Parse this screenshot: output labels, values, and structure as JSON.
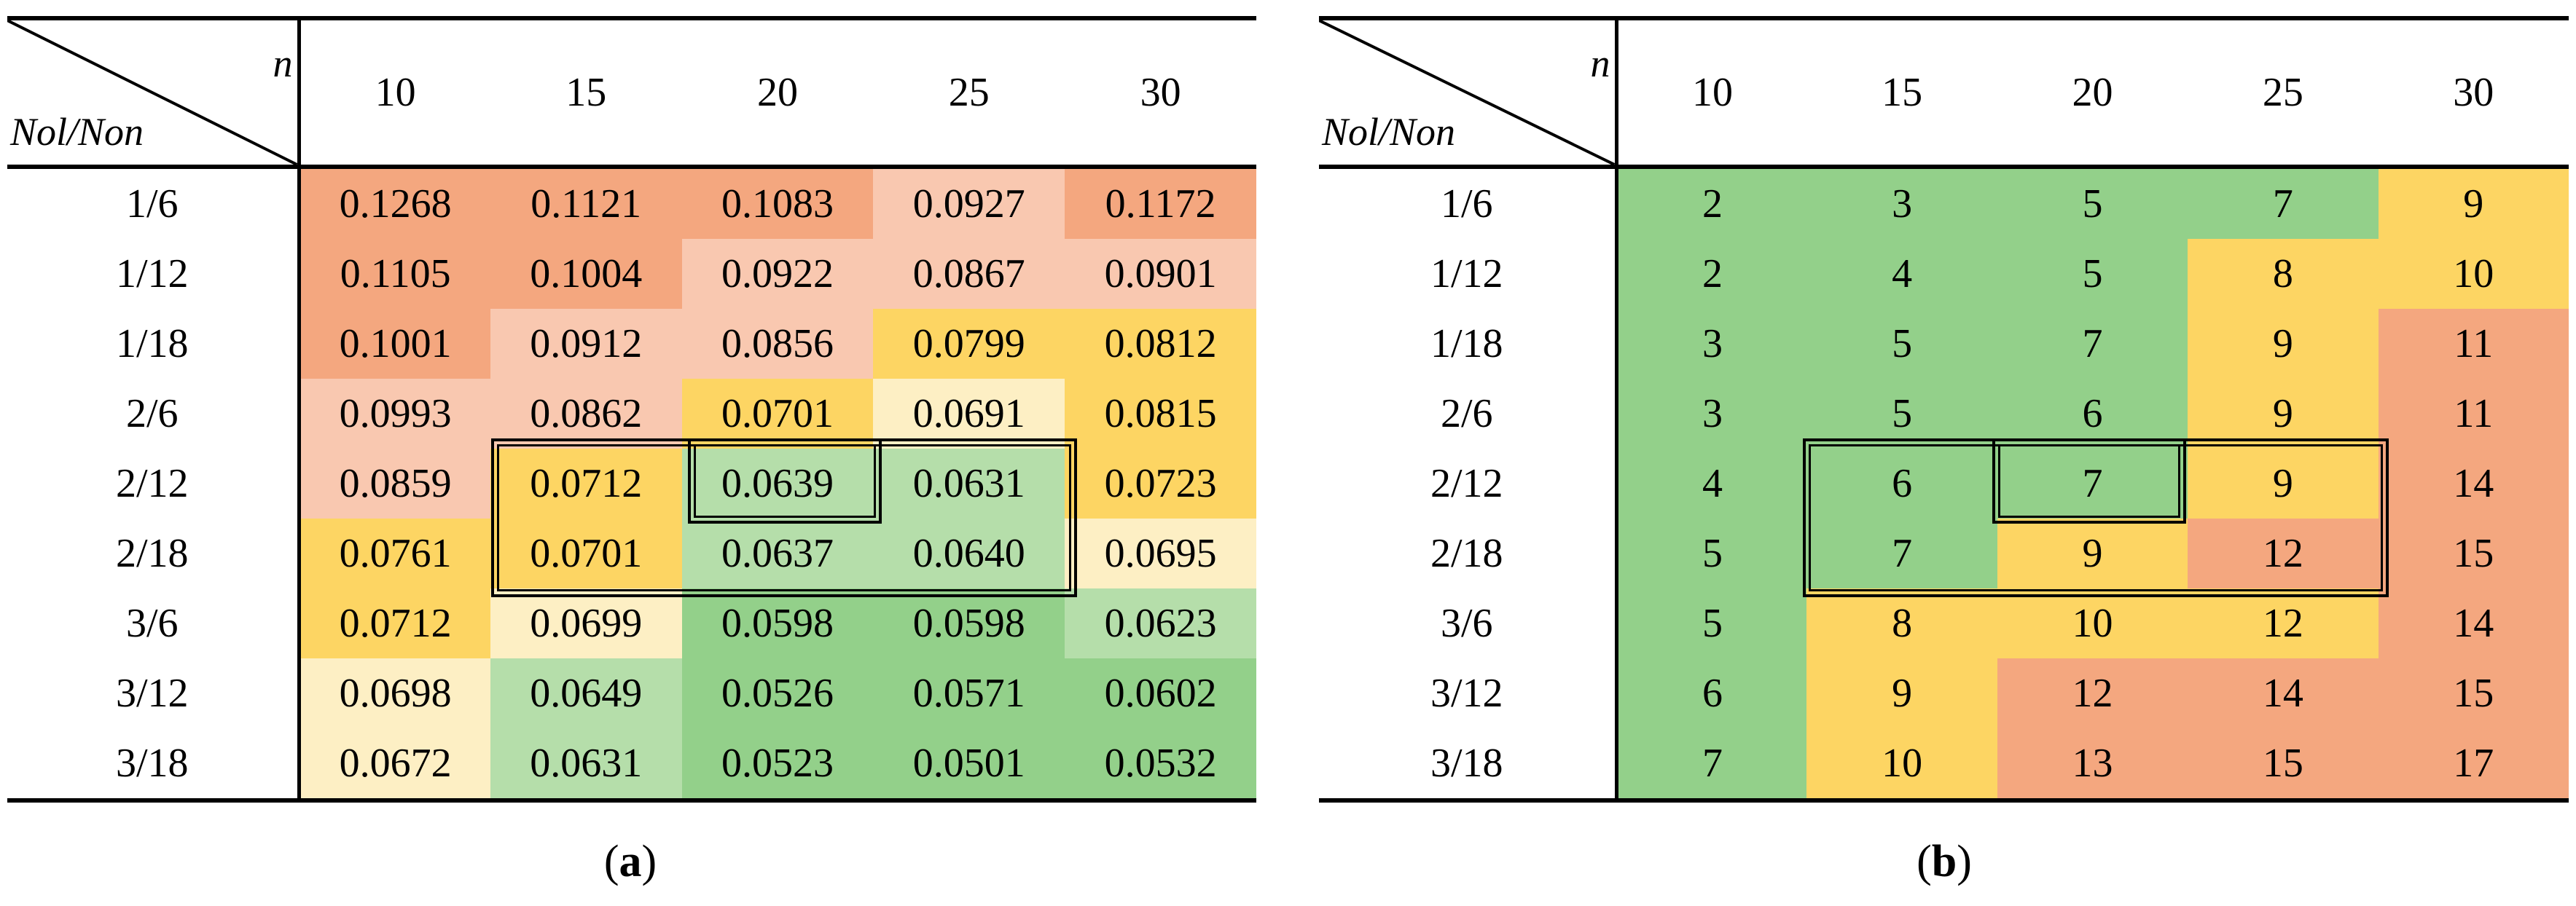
{
  "colors": {
    "orange_dark": "#f4a77f",
    "orange_light": "#f9c8b0",
    "yellow": "#fdd563",
    "cream": "#fdefc4",
    "green_light": "#b5deaa",
    "green_dark": "#93d08a"
  },
  "panel_a": {
    "corner_col_label": "n",
    "corner_row_label": "Nol/Non",
    "columns": [
      "10",
      "15",
      "20",
      "25",
      "30"
    ],
    "rows": [
      {
        "label": "1/6",
        "cells": [
          {
            "v": "0.1268",
            "c": "orange_dark"
          },
          {
            "v": "0.1121",
            "c": "orange_dark"
          },
          {
            "v": "0.1083",
            "c": "orange_dark"
          },
          {
            "v": "0.0927",
            "c": "orange_light"
          },
          {
            "v": "0.1172",
            "c": "orange_dark"
          }
        ]
      },
      {
        "label": "1/12",
        "cells": [
          {
            "v": "0.1105",
            "c": "orange_dark"
          },
          {
            "v": "0.1004",
            "c": "orange_dark"
          },
          {
            "v": "0.0922",
            "c": "orange_light"
          },
          {
            "v": "0.0867",
            "c": "orange_light"
          },
          {
            "v": "0.0901",
            "c": "orange_light"
          }
        ]
      },
      {
        "label": "1/18",
        "cells": [
          {
            "v": "0.1001",
            "c": "orange_dark"
          },
          {
            "v": "0.0912",
            "c": "orange_light"
          },
          {
            "v": "0.0856",
            "c": "orange_light"
          },
          {
            "v": "0.0799",
            "c": "yellow"
          },
          {
            "v": "0.0812",
            "c": "yellow"
          }
        ]
      },
      {
        "label": "2/6",
        "cells": [
          {
            "v": "0.0993",
            "c": "orange_light"
          },
          {
            "v": "0.0862",
            "c": "orange_light"
          },
          {
            "v": "0.0701",
            "c": "yellow"
          },
          {
            "v": "0.0691",
            "c": "cream"
          },
          {
            "v": "0.0815",
            "c": "yellow"
          }
        ]
      },
      {
        "label": "2/12",
        "cells": [
          {
            "v": "0.0859",
            "c": "orange_light"
          },
          {
            "v": "0.0712",
            "c": "yellow"
          },
          {
            "v": "0.0639",
            "c": "green_light"
          },
          {
            "v": "0.0631",
            "c": "green_light"
          },
          {
            "v": "0.0723",
            "c": "yellow"
          }
        ]
      },
      {
        "label": "2/18",
        "cells": [
          {
            "v": "0.0761",
            "c": "yellow"
          },
          {
            "v": "0.0701",
            "c": "yellow"
          },
          {
            "v": "0.0637",
            "c": "green_light"
          },
          {
            "v": "0.0640",
            "c": "green_light"
          },
          {
            "v": "0.0695",
            "c": "cream"
          }
        ]
      },
      {
        "label": "3/6",
        "cells": [
          {
            "v": "0.0712",
            "c": "yellow"
          },
          {
            "v": "0.0699",
            "c": "cream"
          },
          {
            "v": "0.0598",
            "c": "green_dark"
          },
          {
            "v": "0.0598",
            "c": "green_dark"
          },
          {
            "v": "0.0623",
            "c": "green_light"
          }
        ]
      },
      {
        "label": "3/12",
        "cells": [
          {
            "v": "0.0698",
            "c": "cream"
          },
          {
            "v": "0.0649",
            "c": "green_light"
          },
          {
            "v": "0.0526",
            "c": "green_dark"
          },
          {
            "v": "0.0571",
            "c": "green_dark"
          },
          {
            "v": "0.0602",
            "c": "green_dark"
          }
        ]
      },
      {
        "label": "3/18",
        "cells": [
          {
            "v": "0.0672",
            "c": "cream"
          },
          {
            "v": "0.0631",
            "c": "green_light"
          },
          {
            "v": "0.0523",
            "c": "green_dark"
          },
          {
            "v": "0.0501",
            "c": "green_dark"
          },
          {
            "v": "0.0532",
            "c": "green_dark"
          }
        ]
      }
    ],
    "caption_open": "(",
    "caption_letter": "a",
    "caption_close": ")"
  },
  "panel_b": {
    "corner_col_label": "n",
    "corner_row_label": "Nol/Non",
    "columns": [
      "10",
      "15",
      "20",
      "25",
      "30"
    ],
    "rows": [
      {
        "label": "1/6",
        "cells": [
          {
            "v": "2",
            "c": "green_dark"
          },
          {
            "v": "3",
            "c": "green_dark"
          },
          {
            "v": "5",
            "c": "green_dark"
          },
          {
            "v": "7",
            "c": "green_dark"
          },
          {
            "v": "9",
            "c": "yellow"
          }
        ]
      },
      {
        "label": "1/12",
        "cells": [
          {
            "v": "2",
            "c": "green_dark"
          },
          {
            "v": "4",
            "c": "green_dark"
          },
          {
            "v": "5",
            "c": "green_dark"
          },
          {
            "v": "8",
            "c": "yellow"
          },
          {
            "v": "10",
            "c": "yellow"
          }
        ]
      },
      {
        "label": "1/18",
        "cells": [
          {
            "v": "3",
            "c": "green_dark"
          },
          {
            "v": "5",
            "c": "green_dark"
          },
          {
            "v": "7",
            "c": "green_dark"
          },
          {
            "v": "9",
            "c": "yellow"
          },
          {
            "v": "11",
            "c": "orange_dark"
          }
        ]
      },
      {
        "label": "2/6",
        "cells": [
          {
            "v": "3",
            "c": "green_dark"
          },
          {
            "v": "5",
            "c": "green_dark"
          },
          {
            "v": "6",
            "c": "green_dark"
          },
          {
            "v": "9",
            "c": "yellow"
          },
          {
            "v": "11",
            "c": "orange_dark"
          }
        ]
      },
      {
        "label": "2/12",
        "cells": [
          {
            "v": "4",
            "c": "green_dark"
          },
          {
            "v": "6",
            "c": "green_dark"
          },
          {
            "v": "7",
            "c": "green_dark"
          },
          {
            "v": "9",
            "c": "yellow"
          },
          {
            "v": "14",
            "c": "orange_dark"
          }
        ]
      },
      {
        "label": "2/18",
        "cells": [
          {
            "v": "5",
            "c": "green_dark"
          },
          {
            "v": "7",
            "c": "green_dark"
          },
          {
            "v": "9",
            "c": "yellow"
          },
          {
            "v": "12",
            "c": "orange_dark"
          },
          {
            "v": "15",
            "c": "orange_dark"
          }
        ]
      },
      {
        "label": "3/6",
        "cells": [
          {
            "v": "5",
            "c": "green_dark"
          },
          {
            "v": "8",
            "c": "yellow"
          },
          {
            "v": "10",
            "c": "yellow"
          },
          {
            "v": "12",
            "c": "yellow"
          },
          {
            "v": "14",
            "c": "orange_dark"
          }
        ]
      },
      {
        "label": "3/12",
        "cells": [
          {
            "v": "6",
            "c": "green_dark"
          },
          {
            "v": "9",
            "c": "yellow"
          },
          {
            "v": "12",
            "c": "orange_dark"
          },
          {
            "v": "14",
            "c": "orange_dark"
          },
          {
            "v": "15",
            "c": "orange_dark"
          }
        ]
      },
      {
        "label": "3/18",
        "cells": [
          {
            "v": "7",
            "c": "green_dark"
          },
          {
            "v": "10",
            "c": "yellow"
          },
          {
            "v": "13",
            "c": "orange_dark"
          },
          {
            "v": "15",
            "c": "orange_dark"
          },
          {
            "v": "17",
            "c": "orange_dark"
          }
        ]
      }
    ],
    "caption_open": "(",
    "caption_letter": "b",
    "caption_close": ")"
  }
}
